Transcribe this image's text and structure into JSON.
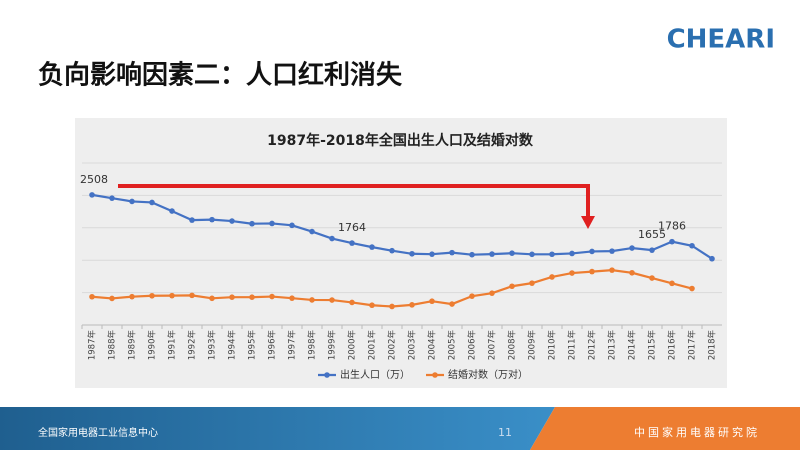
{
  "slide": {
    "logo": "CHEARI",
    "title": "负向影响因素二：人口红利消失",
    "footer_left": "全国家用电器工业信息中心",
    "page_number": "11",
    "footer_right": "中国家用电器研究院"
  },
  "chart_data": {
    "type": "line",
    "title": "1987年-2018年全国出生人口及结婚对数",
    "categories": [
      "1987年",
      "1988年",
      "1989年",
      "1990年",
      "1991年",
      "1992年",
      "1993年",
      "1994年",
      "1995年",
      "1996年",
      "1997年",
      "1998年",
      "1999年",
      "2000年",
      "2001年",
      "2002年",
      "2003年",
      "2004年",
      "2005年",
      "2006年",
      "2007年",
      "2008年",
      "2009年",
      "2010年",
      "2011年",
      "2012年",
      "2013年",
      "2014年",
      "2015年",
      "2016年",
      "2017年",
      "2018年"
    ],
    "series": [
      {
        "name": "出生人口（万）",
        "color": "#4472c4",
        "labeled_points": [
          0,
          13,
          28,
          29
        ],
        "values": [
          2508,
          2457,
          2407,
          2391,
          2258,
          2119,
          2126,
          2104,
          2063,
          2067,
          2038,
          1942,
          1834,
          1764,
          1702,
          1647,
          1599,
          1593,
          1617,
          1585,
          1594,
          1608,
          1591,
          1592,
          1604,
          1635,
          1640,
          1687,
          1655,
          1786,
          1723,
          1523
        ]
      },
      {
        "name": "结婚对数（万对）",
        "color": "#ed7d31",
        "values": [
          936,
          910,
          937,
          951,
          953,
          957,
          912,
          929,
          929,
          939,
          914,
          887,
          885,
          848,
          805,
          786,
          811,
          867,
          823,
          945,
          991,
          1098,
          1146,
          1241,
          1302,
          1324,
          1347,
          1306,
          1225,
          1143,
          1063,
          null
        ]
      }
    ],
    "ylim": [
      500,
      3000
    ],
    "yticks": [
      500,
      1000,
      1500,
      2000,
      2500,
      3000
    ],
    "grid": true,
    "legend": "bottom"
  }
}
